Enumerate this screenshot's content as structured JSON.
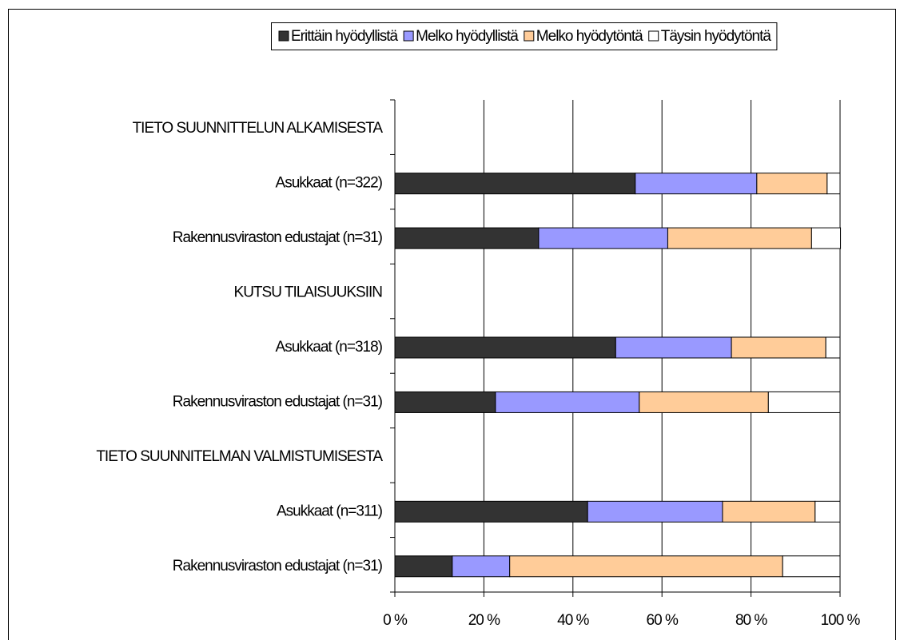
{
  "chart_data": {
    "type": "stacked_barh",
    "categories": [
      "TIETO SUUNNITTELUN ALKAMISESTA",
      "Asukkaat (n=322)",
      "Rakennusviraston edustajat (n=31)",
      "KUTSU TILAISUUKSIIN",
      "Asukkaat (n=318)",
      "Rakennusviraston edustajat (n=31)",
      "TIETO SUUNNITELMAN VALMISTUMISESTA",
      "Asukkaat (n=311)",
      "Rakennusviraston edustajat (n=31)"
    ],
    "series": [
      {
        "name": "Erittäin hyödyllistä",
        "color": "#333333",
        "values": [
          null,
          54.0,
          32.3,
          null,
          49.6,
          22.6,
          null,
          43.3,
          12.9
        ]
      },
      {
        "name": "Melko hyödyllistä",
        "color": "#9999ff",
        "values": [
          null,
          27.3,
          29.0,
          null,
          26.0,
          32.3,
          null,
          30.3,
          12.9
        ]
      },
      {
        "name": "Melko hyödytöntä",
        "color": "#ffcc99",
        "values": [
          null,
          15.8,
          32.3,
          null,
          21.2,
          29.0,
          null,
          20.8,
          61.3
        ]
      },
      {
        "name": "Täysin hyödytöntä",
        "color": "#ffffff",
        "values": [
          null,
          2.9,
          6.5,
          null,
          3.2,
          16.1,
          null,
          5.6,
          12.9
        ]
      }
    ],
    "xlim": [
      0,
      100
    ],
    "xticks": [
      {
        "value": 0,
        "label": "0 %"
      },
      {
        "value": 20,
        "label": "20 %"
      },
      {
        "value": 40,
        "label": "40 %"
      },
      {
        "value": 60,
        "label": "60 %"
      },
      {
        "value": 80,
        "label": "80 %"
      },
      {
        "value": 100,
        "label": "100 %"
      }
    ],
    "grid": true,
    "legend": "top"
  }
}
